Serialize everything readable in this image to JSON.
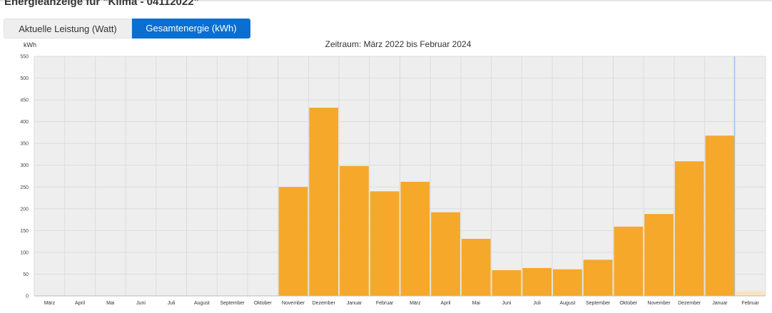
{
  "header": {
    "title": "Energieanzeige für \"Klima - 04112022\""
  },
  "tabs": [
    {
      "label": "Aktuelle Leistung (Watt)",
      "active": false
    },
    {
      "label": "Gesamtenergie (kWh)",
      "active": true
    }
  ],
  "colors": {
    "accent": "#0a6fd0",
    "bar": "#f5a82a",
    "bar_partial": "#fbe3c1",
    "plot_bg": "#eeeeee",
    "crosshair": "#8ab8e6"
  },
  "chart_data": {
    "type": "bar",
    "title": "Zeitraum: März 2022 bis Februar 2024",
    "ylabel": "kWh",
    "ylim": [
      0,
      550
    ],
    "yticks": [
      0,
      50,
      100,
      150,
      200,
      250,
      300,
      350,
      400,
      450,
      500,
      550
    ],
    "grid": true,
    "categories": [
      "März",
      "April",
      "Mai",
      "Juni",
      "Juli",
      "August",
      "September",
      "Oktober",
      "November",
      "Dezember",
      "Januar",
      "Februar",
      "März",
      "April",
      "Mai",
      "Juni",
      "Juli",
      "August",
      "September",
      "Oktober",
      "November",
      "Dezember",
      "Januar",
      "Februar"
    ],
    "values": [
      0,
      0,
      0,
      0,
      0,
      0,
      0,
      0,
      250,
      432,
      298,
      240,
      262,
      192,
      131,
      59,
      64,
      61,
      83,
      159,
      188,
      309,
      368,
      11
    ],
    "highlight_index": 22,
    "partial_index": 23
  }
}
